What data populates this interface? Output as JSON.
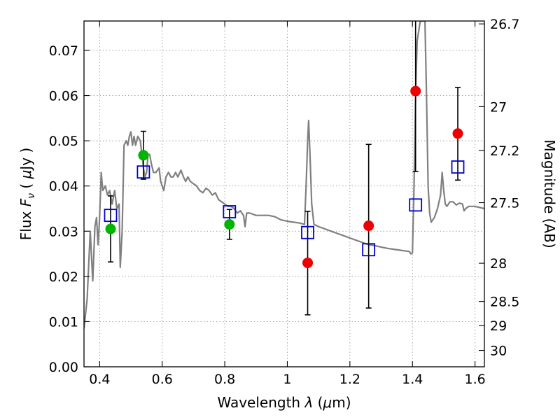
{
  "chart_data": {
    "type": "scatter",
    "xlabel": "Wavelength  λ (μm)",
    "ylabel": "Flux  F_ν  ( μJy )",
    "y2label": "Magnitude (AB)",
    "xlim": [
      0.35,
      1.63
    ],
    "ylim": [
      0.0,
      0.0765
    ],
    "grid": true,
    "x_ticks": [
      0.4,
      0.6,
      0.8,
      1.0,
      1.2,
      1.4,
      1.6
    ],
    "x_tick_labels": [
      "0.4",
      "0.6",
      "0.8",
      "1",
      "1.2",
      "1.4",
      "1.6"
    ],
    "y_ticks": [
      0.0,
      0.01,
      0.02,
      0.03,
      0.04,
      0.05,
      0.06,
      0.07
    ],
    "y_tick_labels": [
      "0.00",
      "0.01",
      "0.02",
      "0.03",
      "0.04",
      "0.05",
      "0.06",
      "0.07"
    ],
    "y2_ticks": [
      {
        "label": "26.7",
        "mag": 26.7
      },
      {
        "label": "27",
        "mag": 27.0
      },
      {
        "label": "27.2",
        "mag": 27.2
      },
      {
        "label": "27.5",
        "mag": 27.5
      },
      {
        "label": "28",
        "mag": 28.0
      },
      {
        "label": "28.5",
        "mag": 28.5
      },
      {
        "label": "29",
        "mag": 29.0
      },
      {
        "label": "30",
        "mag": 30.0
      }
    ],
    "colors": {
      "model": "#808080",
      "green_points": "#00b400",
      "red_points": "#ee0000",
      "squares": "#0000cc",
      "errorbars": "#000000"
    },
    "series": [
      {
        "marker": "circle",
        "color": "#00b400",
        "points": [
          {
            "x": 0.435,
            "y": 0.0305,
            "ylo": 0.0232,
            "yhi": 0.0378
          },
          {
            "x": 0.54,
            "y": 0.0468,
            "ylo": 0.0415,
            "yhi": 0.0521
          },
          {
            "x": 0.815,
            "y": 0.0315,
            "ylo": 0.0282,
            "yhi": 0.0348
          }
        ]
      },
      {
        "marker": "circle",
        "color": "#ee0000",
        "points": [
          {
            "x": 1.065,
            "y": 0.023,
            "ylo": 0.0115,
            "yhi": 0.0344
          },
          {
            "x": 1.26,
            "y": 0.0312,
            "ylo": 0.013,
            "yhi": 0.0492
          },
          {
            "x": 1.41,
            "y": 0.061,
            "ylo": 0.0432,
            "yhi": 0.0765
          },
          {
            "x": 1.545,
            "y": 0.0516,
            "ylo": 0.0413,
            "yhi": 0.0618
          }
        ]
      },
      {
        "marker": "open-square",
        "color": "#0000cc",
        "points": [
          {
            "x": 0.435,
            "y": 0.0335
          },
          {
            "x": 0.54,
            "y": 0.0431
          },
          {
            "x": 0.815,
            "y": 0.0343
          },
          {
            "x": 1.065,
            "y": 0.0297
          },
          {
            "x": 1.26,
            "y": 0.0259
          },
          {
            "x": 1.41,
            "y": 0.0358
          },
          {
            "x": 1.545,
            "y": 0.0442
          }
        ]
      },
      {
        "marker": "line",
        "color": "#808080",
        "model_spectrum": [
          [
            0.35,
            0.0085
          ],
          [
            0.36,
            0.015
          ],
          [
            0.37,
            0.03
          ],
          [
            0.378,
            0.019
          ],
          [
            0.385,
            0.031
          ],
          [
            0.39,
            0.033
          ],
          [
            0.395,
            0.027
          ],
          [
            0.4,
            0.033
          ],
          [
            0.405,
            0.043
          ],
          [
            0.41,
            0.039
          ],
          [
            0.418,
            0.04
          ],
          [
            0.425,
            0.038
          ],
          [
            0.432,
            0.039
          ],
          [
            0.44,
            0.036
          ],
          [
            0.448,
            0.039
          ],
          [
            0.455,
            0.035
          ],
          [
            0.462,
            0.036
          ],
          [
            0.466,
            0.022
          ],
          [
            0.472,
            0.03
          ],
          [
            0.478,
            0.049
          ],
          [
            0.485,
            0.05
          ],
          [
            0.49,
            0.049
          ],
          [
            0.495,
            0.051
          ],
          [
            0.5,
            0.052
          ],
          [
            0.505,
            0.049
          ],
          [
            0.51,
            0.051
          ],
          [
            0.515,
            0.049
          ],
          [
            0.522,
            0.051
          ],
          [
            0.53,
            0.05
          ],
          [
            0.535,
            0.047
          ],
          [
            0.54,
            0.044
          ],
          [
            0.545,
            0.042
          ],
          [
            0.55,
            0.043
          ],
          [
            0.555,
            0.047
          ],
          [
            0.56,
            0.047
          ],
          [
            0.565,
            0.045
          ],
          [
            0.572,
            0.043
          ],
          [
            0.58,
            0.043
          ],
          [
            0.59,
            0.044
          ],
          [
            0.595,
            0.041
          ],
          [
            0.6,
            0.04
          ],
          [
            0.605,
            0.039
          ],
          [
            0.612,
            0.042
          ],
          [
            0.62,
            0.043
          ],
          [
            0.628,
            0.042
          ],
          [
            0.635,
            0.042
          ],
          [
            0.643,
            0.043
          ],
          [
            0.65,
            0.042
          ],
          [
            0.66,
            0.0435
          ],
          [
            0.668,
            0.042
          ],
          [
            0.675,
            0.041
          ],
          [
            0.682,
            0.042
          ],
          [
            0.69,
            0.041
          ],
          [
            0.7,
            0.0405
          ],
          [
            0.71,
            0.04
          ],
          [
            0.72,
            0.039
          ],
          [
            0.73,
            0.0385
          ],
          [
            0.74,
            0.0395
          ],
          [
            0.75,
            0.039
          ],
          [
            0.76,
            0.038
          ],
          [
            0.77,
            0.0385
          ],
          [
            0.78,
            0.037
          ],
          [
            0.79,
            0.0365
          ],
          [
            0.8,
            0.036
          ],
          [
            0.81,
            0.0355
          ],
          [
            0.82,
            0.0355
          ],
          [
            0.83,
            0.035
          ],
          [
            0.84,
            0.034
          ],
          [
            0.85,
            0.0345
          ],
          [
            0.86,
            0.0335
          ],
          [
            0.865,
            0.031
          ],
          [
            0.87,
            0.034
          ],
          [
            0.88,
            0.034
          ],
          [
            0.9,
            0.0335
          ],
          [
            0.92,
            0.0335
          ],
          [
            0.94,
            0.0335
          ],
          [
            0.96,
            0.0332
          ],
          [
            0.98,
            0.0325
          ],
          [
            1.0,
            0.0322
          ],
          [
            1.02,
            0.032
          ],
          [
            1.04,
            0.0318
          ],
          [
            1.055,
            0.0315
          ],
          [
            1.06,
            0.04
          ],
          [
            1.065,
            0.05
          ],
          [
            1.068,
            0.0545
          ],
          [
            1.072,
            0.048
          ],
          [
            1.078,
            0.036
          ],
          [
            1.085,
            0.0315
          ],
          [
            1.1,
            0.031
          ],
          [
            1.12,
            0.0305
          ],
          [
            1.14,
            0.03
          ],
          [
            1.16,
            0.0295
          ],
          [
            1.18,
            0.029
          ],
          [
            1.2,
            0.0285
          ],
          [
            1.22,
            0.028
          ],
          [
            1.24,
            0.0275
          ],
          [
            1.26,
            0.027
          ],
          [
            1.28,
            0.0268
          ],
          [
            1.3,
            0.0265
          ],
          [
            1.32,
            0.0262
          ],
          [
            1.34,
            0.026
          ],
          [
            1.36,
            0.0258
          ],
          [
            1.38,
            0.0256
          ],
          [
            1.39,
            0.0255
          ],
          [
            1.395,
            0.025
          ],
          [
            1.4,
            0.0252
          ],
          [
            1.405,
            0.04
          ],
          [
            1.41,
            0.06
          ],
          [
            1.415,
            0.072
          ],
          [
            1.425,
            0.0765
          ],
          [
            1.44,
            0.0765
          ],
          [
            1.445,
            0.06
          ],
          [
            1.45,
            0.04
          ],
          [
            1.455,
            0.034
          ],
          [
            1.46,
            0.032
          ],
          [
            1.47,
            0.033
          ],
          [
            1.48,
            0.035
          ],
          [
            1.49,
            0.038
          ],
          [
            1.495,
            0.043
          ],
          [
            1.5,
            0.039
          ],
          [
            1.505,
            0.036
          ],
          [
            1.51,
            0.0355
          ],
          [
            1.52,
            0.0365
          ],
          [
            1.53,
            0.0365
          ],
          [
            1.54,
            0.0358
          ],
          [
            1.55,
            0.0362
          ],
          [
            1.56,
            0.036
          ],
          [
            1.565,
            0.0345
          ],
          [
            1.57,
            0.035
          ],
          [
            1.58,
            0.0355
          ],
          [
            1.6,
            0.0355
          ],
          [
            1.63,
            0.035
          ]
        ]
      }
    ]
  }
}
